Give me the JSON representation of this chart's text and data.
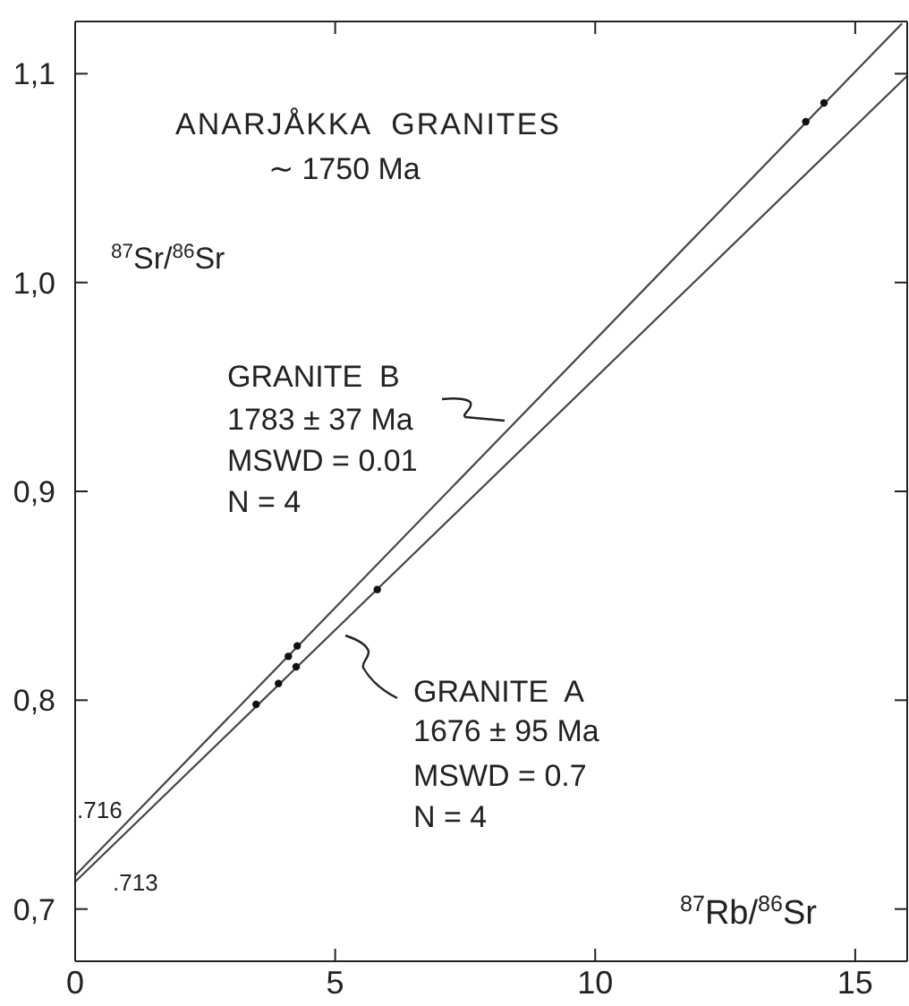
{
  "chart_data": {
    "type": "scatter",
    "title": "ANARJÅKKA  GRANITES",
    "subtitle": "∼ 1750 Ma",
    "xlabel": "$^{87}$Rb/$^{86}$Sr",
    "ylabel": "$^{87}$Sr/$^{86}$Sr",
    "xlim": [
      0,
      16
    ],
    "xticks": [
      0,
      5,
      10,
      15
    ],
    "ylim": [
      0.675,
      1.125
    ],
    "yticks": [
      {
        "value": 0.7,
        "label": "0,7"
      },
      {
        "value": 0.8,
        "label": "0,8"
      },
      {
        "value": 0.9,
        "label": "0,9"
      },
      {
        "value": 1.0,
        "label": "1,0"
      },
      {
        "value": 1.1,
        "label": "1,1"
      }
    ],
    "series": [
      {
        "type": "line",
        "color": "#444444",
        "x": [
          0,
          15.9
        ],
        "values": [
          0.716,
          1.124
        ],
        "marker": "none",
        "line_style": "solid"
      },
      {
        "type": "line",
        "color": "#444444",
        "x": [
          0,
          16
        ],
        "values": [
          0.713,
          1.099
        ],
        "marker": "none",
        "line_style": "solid"
      },
      {
        "type": "scatter",
        "color": "#111111",
        "x": [
          4.1,
          4.27,
          14.05,
          14.4
        ],
        "values": [
          0.821,
          0.826,
          1.077,
          1.086
        ],
        "marker": "circle"
      },
      {
        "type": "scatter",
        "color": "#111111",
        "x": [
          3.48,
          3.91,
          4.25,
          5.81
        ],
        "values": [
          0.798,
          0.808,
          0.816,
          0.853
        ],
        "marker": "circle"
      }
    ],
    "annotations": [
      "GRANITE  B",
      "1783 ± 37 Ma",
      "MSWD = 0.01",
      "N = 4",
      "GRANITE  A",
      "1676 ± 95 Ma",
      "MSWD = 0.7",
      "N = 4",
      {
        "text": ".716",
        "x": 0,
        "y": 0.716
      },
      {
        "text": ".713",
        "x": 0,
        "y": 0.713
      }
    ]
  }
}
